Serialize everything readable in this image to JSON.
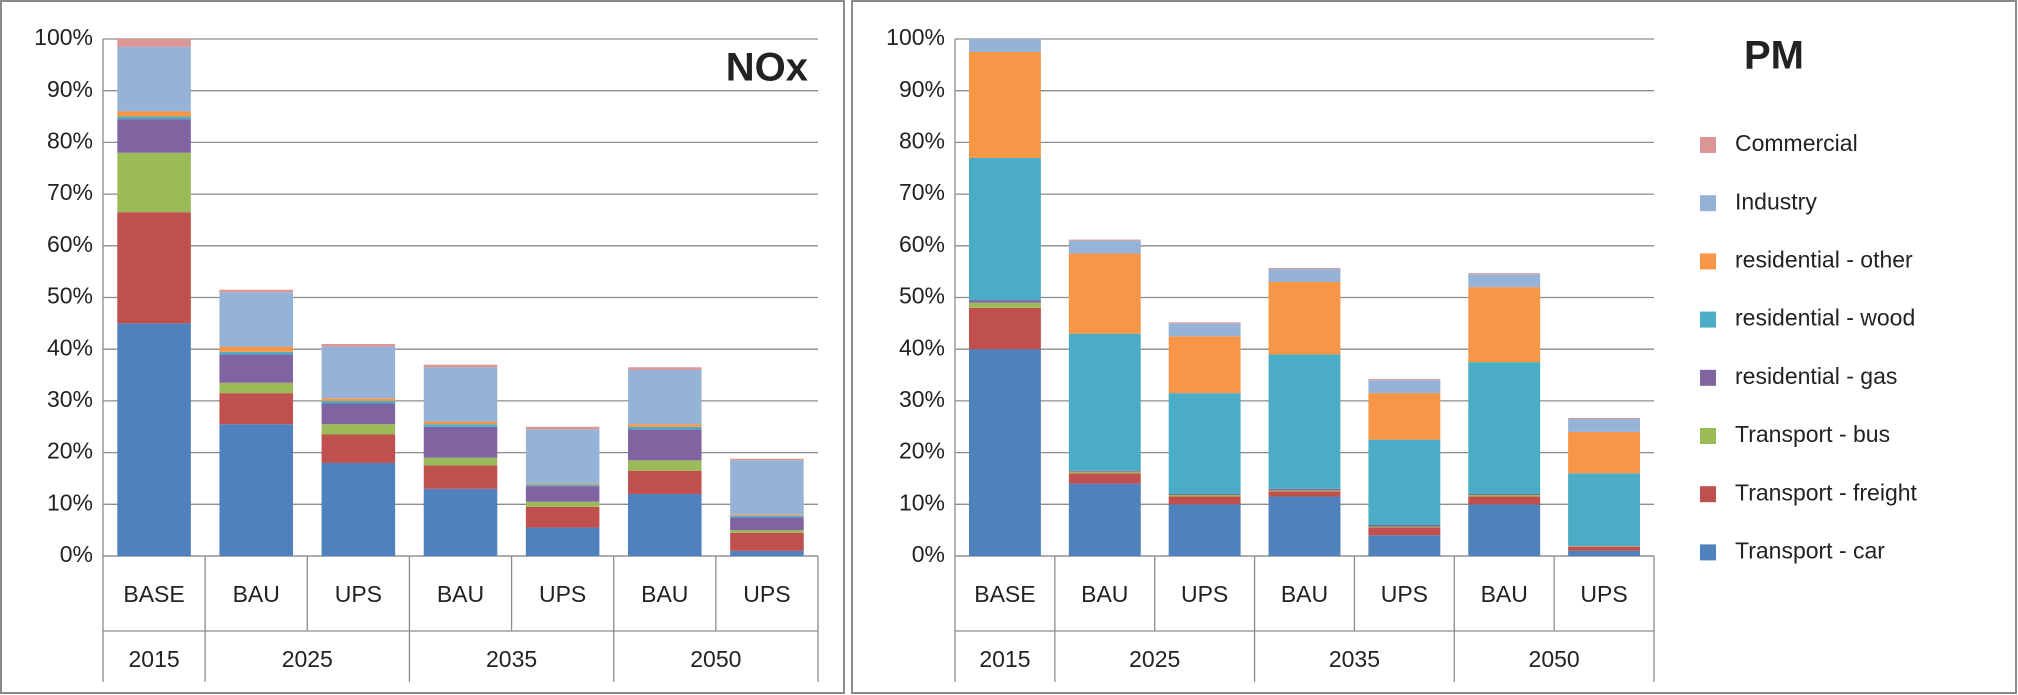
{
  "chart_data": [
    {
      "type": "stacked_bar",
      "title": "NOx",
      "categories": [
        "BASE",
        "BAU",
        "UPS",
        "BAU",
        "UPS",
        "BAU",
        "UPS"
      ],
      "category_groups": [
        {
          "label": "2015",
          "count": 1
        },
        {
          "label": "2025",
          "count": 2
        },
        {
          "label": "2035",
          "count": 2
        },
        {
          "label": "2050",
          "count": 2
        }
      ],
      "ylim": [
        0,
        100
      ],
      "yticks": [
        {
          "value": 0,
          "label": "0%"
        },
        {
          "value": 10,
          "label": "10%"
        },
        {
          "value": 20,
          "label": "20%"
        },
        {
          "value": 30,
          "label": "30%"
        },
        {
          "value": 40,
          "label": "40%"
        },
        {
          "value": 50,
          "label": "50%"
        },
        {
          "value": 60,
          "label": "60%"
        },
        {
          "value": 70,
          "label": "70%"
        },
        {
          "value": 80,
          "label": "80%"
        },
        {
          "value": 90,
          "label": "90%"
        },
        {
          "value": 100,
          "label": "100%"
        }
      ],
      "grid": true,
      "legend": false,
      "series": [
        {
          "color": "#4f81bd",
          "values": [
            45,
            25.5,
            18,
            13,
            5.5,
            12,
            1
          ]
        },
        {
          "color": "#c0504d",
          "values": [
            21.5,
            6,
            5.5,
            4.5,
            4,
            4.5,
            3.5
          ]
        },
        {
          "color": "#9bbb59",
          "values": [
            11.5,
            2,
            2,
            1.5,
            1,
            2,
            0.5
          ]
        },
        {
          "color": "#8064a2",
          "values": [
            6.5,
            5.5,
            4,
            6,
            3,
            6,
            2.5
          ]
        },
        {
          "color": "#4bacc6",
          "values": [
            0.5,
            0.5,
            0.5,
            0.5,
            0.3,
            0.5,
            0.3
          ]
        },
        {
          "color": "#f79646",
          "values": [
            1,
            1,
            0.5,
            0.5,
            0.2,
            0.5,
            0.2
          ]
        },
        {
          "color": "#95b3d7",
          "values": [
            12.5,
            10.5,
            10,
            10.5,
            10.5,
            10.5,
            10.5
          ]
        },
        {
          "color": "#d99694",
          "values": [
            1.5,
            0.5,
            0.5,
            0.5,
            0.5,
            0.5,
            0.3
          ]
        }
      ]
    },
    {
      "type": "stacked_bar",
      "title": "PM",
      "categories": [
        "BASE",
        "BAU",
        "UPS",
        "BAU",
        "UPS",
        "BAU",
        "UPS"
      ],
      "category_groups": [
        {
          "label": "2015",
          "count": 1
        },
        {
          "label": "2025",
          "count": 2
        },
        {
          "label": "2035",
          "count": 2
        },
        {
          "label": "2050",
          "count": 2
        }
      ],
      "ylim": [
        0,
        100
      ],
      "yticks": [
        {
          "value": 0,
          "label": "0%"
        },
        {
          "value": 10,
          "label": "10%"
        },
        {
          "value": 20,
          "label": "20%"
        },
        {
          "value": 30,
          "label": "30%"
        },
        {
          "value": 40,
          "label": "40%"
        },
        {
          "value": 50,
          "label": "50%"
        },
        {
          "value": 60,
          "label": "60%"
        },
        {
          "value": 70,
          "label": "70%"
        },
        {
          "value": 80,
          "label": "80%"
        },
        {
          "value": 90,
          "label": "90%"
        },
        {
          "value": 100,
          "label": "100%"
        }
      ],
      "grid": true,
      "legend": "right",
      "series": [
        {
          "name": "Transport - car",
          "color": "#4f81bd",
          "values": [
            40,
            14,
            10,
            11.5,
            4,
            10,
            1
          ]
        },
        {
          "name": "Transport - freight",
          "color": "#c0504d",
          "values": [
            8,
            2,
            1.5,
            1,
            1.5,
            1.5,
            0.8
          ]
        },
        {
          "name": "Transport - bus",
          "color": "#9bbb59",
          "values": [
            1,
            0.3,
            0.3,
            0.2,
            0.2,
            0.3,
            0.1
          ]
        },
        {
          "name": "residential - gas",
          "color": "#8064a2",
          "values": [
            0.5,
            0.2,
            0.2,
            0.3,
            0.3,
            0.2,
            0.1
          ]
        },
        {
          "name": "residential - wood",
          "color": "#4bacc6",
          "values": [
            27.5,
            26.5,
            19.5,
            26,
            16.5,
            25.5,
            14
          ]
        },
        {
          "name": "residential - other",
          "color": "#f79646",
          "values": [
            20.5,
            15.5,
            11,
            14,
            9,
            14.5,
            8
          ]
        },
        {
          "name": "Industry",
          "color": "#95b3d7",
          "values": [
            2.5,
            2.5,
            2.5,
            2.5,
            2.5,
            2.5,
            2.5
          ]
        },
        {
          "name": "Commercial",
          "color": "#d99694",
          "values": [
            0,
            0.2,
            0.2,
            0.2,
            0.2,
            0.2,
            0.2
          ]
        }
      ]
    }
  ]
}
